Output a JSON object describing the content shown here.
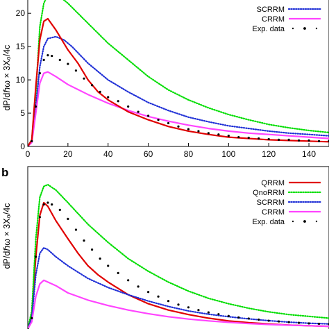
{
  "figure": {
    "panel_b_label": "b"
  },
  "chart_data": [
    {
      "type": "line",
      "panel": "a",
      "ylabel": "dP/dℏω × 3X₀/4c",
      "xlim": [
        0,
        150
      ],
      "ylim": [
        0,
        22
      ],
      "x_ticks": [
        0,
        20,
        40,
        60,
        80,
        100,
        120,
        140
      ],
      "y_ticks": [
        0,
        5,
        10,
        15,
        20
      ],
      "grid": false,
      "legend_position": "top-right",
      "series": [
        {
          "name": "",
          "color": "#00dd00",
          "style": "dotted",
          "points": [
            [
              0,
              0
            ],
            [
              2,
              1
            ],
            [
              4,
              8
            ],
            [
              6,
              18
            ],
            [
              8,
              21.5
            ],
            [
              10,
              22.8
            ],
            [
              14,
              23
            ],
            [
              20,
              21.5
            ],
            [
              30,
              18.5
            ],
            [
              40,
              15.5
            ],
            [
              50,
              13
            ],
            [
              60,
              10.5
            ],
            [
              70,
              8.5
            ],
            [
              80,
              7
            ],
            [
              90,
              5.8
            ],
            [
              100,
              4.8
            ],
            [
              110,
              4
            ],
            [
              120,
              3.3
            ],
            [
              130,
              2.8
            ],
            [
              140,
              2.4
            ],
            [
              150,
              2.1
            ]
          ]
        },
        {
          "name": "SCRRM",
          "color": "#1f2fd6",
          "style": "dotted",
          "points": [
            [
              0,
              0
            ],
            [
              2,
              0.8
            ],
            [
              4,
              6
            ],
            [
              6,
              12
            ],
            [
              8,
              15
            ],
            [
              10,
              16.2
            ],
            [
              14,
              16.5
            ],
            [
              18,
              16
            ],
            [
              22,
              15
            ],
            [
              30,
              12.5
            ],
            [
              40,
              10
            ],
            [
              50,
              8.2
            ],
            [
              60,
              6.6
            ],
            [
              70,
              5.4
            ],
            [
              80,
              4.4
            ],
            [
              90,
              3.7
            ],
            [
              100,
              3.1
            ],
            [
              110,
              2.7
            ],
            [
              120,
              2.3
            ],
            [
              130,
              2
            ],
            [
              140,
              1.8
            ],
            [
              150,
              1.6
            ]
          ]
        },
        {
          "name": "CRRM",
          "color": "#ff44ff",
          "style": "solid",
          "points": [
            [
              0,
              0
            ],
            [
              2,
              0.6
            ],
            [
              4,
              5
            ],
            [
              6,
              9.5
            ],
            [
              8,
              11
            ],
            [
              10,
              11.2
            ],
            [
              14,
              10.5
            ],
            [
              20,
              9.3
            ],
            [
              30,
              7.8
            ],
            [
              40,
              6.5
            ],
            [
              50,
              5.4
            ],
            [
              60,
              4.5
            ],
            [
              70,
              3.8
            ],
            [
              80,
              3.2
            ],
            [
              90,
              2.7
            ],
            [
              100,
              2.3
            ],
            [
              110,
              2
            ],
            [
              120,
              1.8
            ],
            [
              130,
              1.6
            ],
            [
              140,
              1.4
            ],
            [
              150,
              1.2
            ]
          ]
        },
        {
          "name": "",
          "color": "#e00000",
          "style": "solid",
          "points": [
            [
              0,
              0
            ],
            [
              2,
              1
            ],
            [
              4,
              9
            ],
            [
              6,
              16
            ],
            [
              8,
              18.8
            ],
            [
              10,
              19.2
            ],
            [
              14,
              17.5
            ],
            [
              20,
              14.5
            ],
            [
              25,
              12.5
            ],
            [
              30,
              10
            ],
            [
              35,
              8.2
            ],
            [
              40,
              7
            ],
            [
              50,
              5.2
            ],
            [
              60,
              4
            ],
            [
              70,
              3
            ],
            [
              80,
              2.3
            ],
            [
              90,
              1.8
            ],
            [
              100,
              1.4
            ],
            [
              110,
              1.2
            ],
            [
              120,
              1
            ],
            [
              130,
              0.9
            ],
            [
              140,
              0.8
            ],
            [
              150,
              0.7
            ]
          ]
        },
        {
          "name": "Exp. data",
          "color": "#000000",
          "style": "points",
          "points": [
            [
              0,
              0
            ],
            [
              2,
              0.8
            ],
            [
              4,
              6
            ],
            [
              6,
              11
            ],
            [
              8,
              13
            ],
            [
              10,
              13.7
            ],
            [
              12,
              13.6
            ],
            [
              16,
              13
            ],
            [
              20,
              12.4
            ],
            [
              24,
              11.4
            ],
            [
              28,
              10.2
            ],
            [
              32,
              9.2
            ],
            [
              36,
              8.2
            ],
            [
              40,
              7.4
            ],
            [
              45,
              6.8
            ],
            [
              50,
              6
            ],
            [
              55,
              5.2
            ],
            [
              60,
              4.6
            ],
            [
              65,
              4
            ],
            [
              70,
              3.5
            ],
            [
              75,
              3
            ],
            [
              80,
              2.6
            ],
            [
              85,
              2.3
            ],
            [
              90,
              2
            ],
            [
              95,
              1.8
            ],
            [
              100,
              1.6
            ],
            [
              105,
              1.4
            ],
            [
              110,
              1.3
            ],
            [
              115,
              1.2
            ],
            [
              120,
              1.1
            ],
            [
              125,
              1
            ],
            [
              130,
              1
            ],
            [
              135,
              0.9
            ],
            [
              140,
              0.9
            ],
            [
              145,
              0.8
            ],
            [
              150,
              0.8
            ]
          ]
        }
      ]
    },
    {
      "type": "line",
      "panel": "b",
      "ylabel": "dP/dℏω × 3X₀/4c",
      "xlim": [
        0,
        150
      ],
      "ylim": [
        0,
        9
      ],
      "grid": false,
      "legend_position": "top-right",
      "series": [
        {
          "name": "QRRM",
          "color": "#e00000",
          "style": "solid",
          "points": [
            [
              0,
              0
            ],
            [
              2,
              0.8
            ],
            [
              4,
              4
            ],
            [
              6,
              6.3
            ],
            [
              8,
              7
            ],
            [
              10,
              6.8
            ],
            [
              14,
              6
            ],
            [
              20,
              5
            ],
            [
              25,
              4.2
            ],
            [
              30,
              3.5
            ],
            [
              35,
              3
            ],
            [
              40,
              2.6
            ],
            [
              50,
              1.9
            ],
            [
              60,
              1.4
            ],
            [
              70,
              1.05
            ],
            [
              80,
              0.8
            ],
            [
              90,
              0.6
            ],
            [
              100,
              0.45
            ],
            [
              110,
              0.35
            ],
            [
              120,
              0.28
            ],
            [
              130,
              0.22
            ],
            [
              140,
              0.18
            ],
            [
              150,
              0.15
            ]
          ]
        },
        {
          "name": "QnoRRM",
          "color": "#00dd00",
          "style": "dotted",
          "points": [
            [
              0,
              0
            ],
            [
              2,
              1
            ],
            [
              4,
              5
            ],
            [
              6,
              7.3
            ],
            [
              8,
              7.9
            ],
            [
              10,
              8
            ],
            [
              14,
              7.7
            ],
            [
              20,
              7
            ],
            [
              30,
              5.8
            ],
            [
              40,
              4.8
            ],
            [
              50,
              3.9
            ],
            [
              60,
              3.2
            ],
            [
              70,
              2.6
            ],
            [
              80,
              2.1
            ],
            [
              90,
              1.7
            ],
            [
              100,
              1.4
            ],
            [
              110,
              1.15
            ],
            [
              120,
              0.95
            ],
            [
              130,
              0.8
            ],
            [
              140,
              0.7
            ],
            [
              150,
              0.6
            ]
          ]
        },
        {
          "name": "SCRRM",
          "color": "#1f2fd6",
          "style": "dotted",
          "points": [
            [
              0,
              0
            ],
            [
              2,
              0.6
            ],
            [
              4,
              3
            ],
            [
              6,
              4.2
            ],
            [
              8,
              4.5
            ],
            [
              10,
              4.4
            ],
            [
              14,
              4
            ],
            [
              20,
              3.5
            ],
            [
              30,
              2.8
            ],
            [
              40,
              2.3
            ],
            [
              50,
              1.9
            ],
            [
              60,
              1.55
            ],
            [
              70,
              1.25
            ],
            [
              80,
              1
            ],
            [
              90,
              0.82
            ],
            [
              100,
              0.68
            ],
            [
              110,
              0.56
            ],
            [
              120,
              0.46
            ],
            [
              130,
              0.38
            ],
            [
              140,
              0.32
            ],
            [
              150,
              0.28
            ]
          ]
        },
        {
          "name": "CRRM",
          "color": "#ff44ff",
          "style": "solid",
          "points": [
            [
              0,
              0
            ],
            [
              2,
              0.4
            ],
            [
              4,
              1.8
            ],
            [
              6,
              2.5
            ],
            [
              8,
              2.7
            ],
            [
              10,
              2.6
            ],
            [
              14,
              2.4
            ],
            [
              20,
              2
            ],
            [
              30,
              1.6
            ],
            [
              40,
              1.3
            ],
            [
              50,
              1.05
            ],
            [
              60,
              0.85
            ],
            [
              70,
              0.68
            ],
            [
              80,
              0.55
            ],
            [
              90,
              0.45
            ],
            [
              100,
              0.37
            ],
            [
              110,
              0.3
            ],
            [
              120,
              0.25
            ],
            [
              130,
              0.21
            ],
            [
              140,
              0.18
            ],
            [
              150,
              0.15
            ]
          ]
        },
        {
          "name": "Exp. data",
          "color": "#000000",
          "style": "points",
          "points": [
            [
              0,
              0
            ],
            [
              2,
              0.6
            ],
            [
              4,
              4
            ],
            [
              6,
              6.2
            ],
            [
              8,
              6.9
            ],
            [
              10,
              7
            ],
            [
              12,
              6.9
            ],
            [
              16,
              6.6
            ],
            [
              20,
              6.1
            ],
            [
              24,
              5.5
            ],
            [
              28,
              4.9
            ],
            [
              32,
              4.4
            ],
            [
              36,
              3.9
            ],
            [
              40,
              3.5
            ],
            [
              45,
              3.1
            ],
            [
              50,
              2.7
            ],
            [
              55,
              2.35
            ],
            [
              60,
              2.05
            ],
            [
              65,
              1.8
            ],
            [
              70,
              1.55
            ],
            [
              75,
              1.35
            ],
            [
              80,
              1.2
            ],
            [
              85,
              1.05
            ],
            [
              90,
              0.92
            ],
            [
              95,
              0.82
            ],
            [
              100,
              0.72
            ],
            [
              105,
              0.64
            ],
            [
              110,
              0.58
            ],
            [
              115,
              0.52
            ],
            [
              120,
              0.46
            ],
            [
              125,
              0.42
            ],
            [
              130,
              0.38
            ],
            [
              135,
              0.34
            ],
            [
              140,
              0.31
            ],
            [
              145,
              0.29
            ],
            [
              150,
              0.27
            ]
          ]
        }
      ]
    }
  ]
}
